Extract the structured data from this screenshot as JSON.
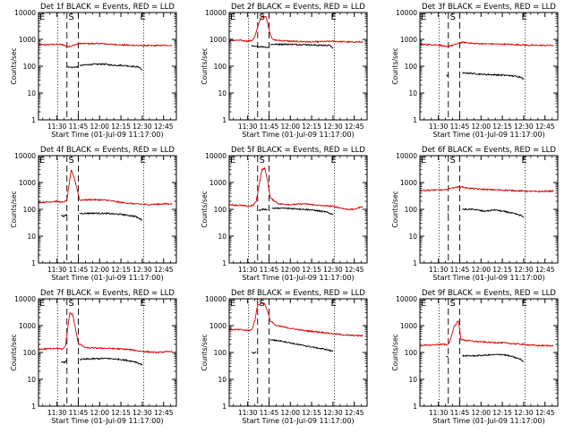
{
  "chart_data": {
    "type": "line",
    "y_scale": "log",
    "ylim": [
      1,
      10000
    ],
    "y_ticks": [
      "1",
      "10",
      "100",
      "1000",
      "10000"
    ],
    "x_ticks": [
      "11:30",
      "11:45",
      "12:00",
      "12:15",
      "12:30",
      "12:45"
    ],
    "x_tick_values": [
      30,
      45,
      60,
      75,
      90,
      105
    ],
    "x_unit": "minutes after 11:00",
    "xlim": [
      17,
      114
    ],
    "xlabel": "Start Time (01-Jul-09 11:17:00)",
    "ylabel": "Counts/sec",
    "series_names": [
      "Events",
      "LLD"
    ],
    "series_colors": {
      "Events": "#000000",
      "LLD": "#dd0000"
    },
    "panels": [
      {
        "title": "Det 1f BLACK = Events, RED = LLD",
        "markers": {
          "E1": "E",
          "S": "S",
          "E2": "E"
        },
        "vlines": {
          "dotted": [
            30.5,
            91
          ],
          "dashed": [
            37,
            45
          ]
        },
        "events": [
          [
            37.5,
            100
          ],
          [
            38,
            95
          ],
          [
            40,
            90
          ],
          [
            45,
            95
          ]
        ],
        "events2": [
          [
            46,
            105
          ],
          [
            52,
            115
          ],
          [
            58,
            118
          ],
          [
            63,
            120
          ],
          [
            68,
            110
          ],
          [
            74,
            108
          ],
          [
            78,
            105
          ],
          [
            82,
            100
          ],
          [
            86,
            95
          ],
          [
            88,
            92
          ],
          [
            90,
            70
          ]
        ],
        "lld": [
          [
            17,
            620
          ],
          [
            25,
            640
          ],
          [
            30,
            650
          ],
          [
            34,
            640
          ],
          [
            35,
            600
          ],
          [
            37,
            550
          ],
          [
            40,
            560
          ],
          [
            43,
            640
          ],
          [
            46,
            700
          ],
          [
            52,
            690
          ],
          [
            60,
            700
          ],
          [
            75,
            620
          ],
          [
            85,
            600
          ],
          [
            95,
            580
          ],
          [
            105,
            600
          ],
          [
            111,
            600
          ]
        ]
      },
      {
        "title": "Det 2f BLACK = Events, RED = LLD",
        "markers": {
          "E1": "E",
          "S": "S",
          "E2": "E"
        },
        "vlines": {
          "dotted": [
            30.5,
            91
          ],
          "dashed": [
            37,
            45
          ]
        },
        "events": [
          [
            33,
            600
          ],
          [
            33,
            550
          ],
          [
            40,
            530
          ],
          [
            45,
            500
          ]
        ],
        "events2": [
          [
            46,
            650
          ],
          [
            55,
            660
          ],
          [
            62,
            650
          ],
          [
            70,
            640
          ],
          [
            80,
            600
          ],
          [
            88,
            600
          ],
          [
            90,
            450
          ]
        ],
        "lld": [
          [
            17,
            900
          ],
          [
            25,
            920
          ],
          [
            30,
            860
          ],
          [
            33,
            900
          ],
          [
            35,
            1200
          ],
          [
            37,
            3000
          ],
          [
            39,
            6000
          ],
          [
            41,
            7500
          ],
          [
            43,
            7000
          ],
          [
            44,
            4000
          ],
          [
            46,
            1500
          ],
          [
            48,
            950
          ],
          [
            60,
            850
          ],
          [
            75,
            800
          ],
          [
            90,
            850
          ],
          [
            101,
            800
          ],
          [
            111,
            800
          ]
        ]
      },
      {
        "title": "Det 3f BLACK = Events, RED = LLD",
        "markers": {
          "E1": "E",
          "S": "S",
          "E2": "E"
        },
        "vlines": {
          "dotted": [
            30.5,
            91
          ],
          "dashed": [
            37,
            45
          ]
        },
        "events": [
          [
            35.5,
            45
          ],
          [
            37,
            45
          ]
        ],
        "events2": [
          [
            47,
            55
          ],
          [
            52,
            55
          ],
          [
            60,
            50
          ],
          [
            70,
            48
          ],
          [
            80,
            45
          ],
          [
            88,
            40
          ],
          [
            90,
            32
          ]
        ],
        "lld": [
          [
            17,
            650
          ],
          [
            25,
            640
          ],
          [
            30,
            620
          ],
          [
            34,
            560
          ],
          [
            36,
            520
          ],
          [
            37,
            560
          ],
          [
            40,
            600
          ],
          [
            44,
            700
          ],
          [
            47,
            780
          ],
          [
            55,
            700
          ],
          [
            65,
            680
          ],
          [
            80,
            650
          ],
          [
            95,
            600
          ],
          [
            111,
            600
          ]
        ]
      },
      {
        "title": "Det 4f BLACK = Events, RED = LLD",
        "markers": {
          "E1": "E",
          "S": "S",
          "E2": "E"
        },
        "vlines": {
          "dotted": [
            30.5,
            91
          ],
          "dashed": [
            37,
            45
          ]
        },
        "events": [
          [
            33,
            60
          ],
          [
            35,
            55
          ],
          [
            37,
            65
          ]
        ],
        "events2": [
          [
            46,
            70
          ],
          [
            55,
            72
          ],
          [
            65,
            70
          ],
          [
            75,
            65
          ],
          [
            85,
            55
          ],
          [
            90,
            40
          ]
        ],
        "lld": [
          [
            17,
            180
          ],
          [
            25,
            190
          ],
          [
            30,
            200
          ],
          [
            34,
            180
          ],
          [
            37,
            220
          ],
          [
            40,
            3000
          ],
          [
            42,
            1600
          ],
          [
            44,
            600
          ],
          [
            46,
            220
          ],
          [
            55,
            230
          ],
          [
            65,
            220
          ],
          [
            75,
            180
          ],
          [
            85,
            160
          ],
          [
            95,
            150
          ],
          [
            105,
            160
          ],
          [
            111,
            160
          ]
        ]
      },
      {
        "title": "Det 5f BLACK = Events, RED = LLD",
        "markers": {
          "E1": "E",
          "S": "S",
          "E2": "E"
        },
        "vlines": {
          "dotted": [
            30.5,
            91
          ],
          "dashed": [
            37,
            45
          ]
        },
        "events": [
          [
            38,
            95
          ],
          [
            38,
            90
          ],
          [
            40,
            100
          ],
          [
            44,
            100
          ]
        ],
        "events2": [
          [
            47,
            110
          ],
          [
            55,
            110
          ],
          [
            65,
            105
          ],
          [
            75,
            95
          ],
          [
            85,
            80
          ],
          [
            90,
            65
          ]
        ],
        "lld": [
          [
            17,
            150
          ],
          [
            25,
            140
          ],
          [
            30,
            130
          ],
          [
            34,
            140
          ],
          [
            36,
            200
          ],
          [
            38,
            800
          ],
          [
            40,
            3000
          ],
          [
            42,
            3400
          ],
          [
            44,
            1200
          ],
          [
            46,
            260
          ],
          [
            52,
            160
          ],
          [
            60,
            150
          ],
          [
            70,
            160
          ],
          [
            80,
            140
          ],
          [
            90,
            130
          ],
          [
            100,
            100
          ],
          [
            105,
            100
          ],
          [
            111,
            130
          ]
        ]
      },
      {
        "title": "Det 6f BLACK = Events, RED = LLD",
        "markers": {
          "E1": "E",
          "S": "S",
          "E2": "E"
        },
        "vlines": {
          "dotted": [
            30.5,
            91
          ],
          "dashed": [
            37,
            45
          ]
        },
        "events": [
          [
            36.5,
            70
          ],
          [
            37,
            65
          ]
        ],
        "events2": [
          [
            47,
            100
          ],
          [
            55,
            100
          ],
          [
            62,
            85
          ],
          [
            70,
            95
          ],
          [
            78,
            80
          ],
          [
            88,
            60
          ],
          [
            90,
            50
          ]
        ],
        "lld": [
          [
            17,
            500
          ],
          [
            25,
            520
          ],
          [
            30,
            530
          ],
          [
            34,
            520
          ],
          [
            36,
            560
          ],
          [
            38,
            600
          ],
          [
            42,
            650
          ],
          [
            46,
            700
          ],
          [
            50,
            620
          ],
          [
            60,
            560
          ],
          [
            75,
            520
          ],
          [
            90,
            480
          ],
          [
            100,
            460
          ],
          [
            111,
            480
          ]
        ]
      },
      {
        "title": "Det 7f BLACK = Events, RED = LLD",
        "markers": {
          "E1": "E",
          "S": "S",
          "E2": "E"
        },
        "vlines": {
          "dotted": [
            30.5,
            91
          ],
          "dashed": [
            37,
            45
          ]
        },
        "events": [
          [
            33,
            45
          ],
          [
            35,
            42
          ],
          [
            37,
            50
          ]
        ],
        "events2": [
          [
            46,
            55
          ],
          [
            55,
            58
          ],
          [
            65,
            60
          ],
          [
            75,
            55
          ],
          [
            85,
            45
          ],
          [
            90,
            35
          ]
        ],
        "lld": [
          [
            17,
            130
          ],
          [
            25,
            140
          ],
          [
            30,
            145
          ],
          [
            34,
            130
          ],
          [
            36,
            180
          ],
          [
            39,
            3000
          ],
          [
            41,
            2600
          ],
          [
            43,
            800
          ],
          [
            45,
            220
          ],
          [
            50,
            150
          ],
          [
            60,
            145
          ],
          [
            70,
            140
          ],
          [
            80,
            130
          ],
          [
            90,
            110
          ],
          [
            100,
            100
          ],
          [
            111,
            110
          ]
        ]
      },
      {
        "title": "Det 8f BLACK = Events, RED = LLD",
        "markers": {
          "E1": "E",
          "S": "S",
          "E2": "E"
        },
        "vlines": {
          "dotted": [
            30.5,
            91
          ],
          "dashed": [
            37,
            45
          ]
        },
        "events": [
          [
            33,
            100
          ],
          [
            34,
            95
          ],
          [
            36,
            105
          ]
        ],
        "events2": [
          [
            46,
            300
          ],
          [
            55,
            260
          ],
          [
            65,
            200
          ],
          [
            75,
            160
          ],
          [
            85,
            130
          ],
          [
            90,
            110
          ]
        ],
        "lld": [
          [
            17,
            720
          ],
          [
            25,
            700
          ],
          [
            30,
            660
          ],
          [
            33,
            700
          ],
          [
            35,
            1500
          ],
          [
            37,
            6000
          ],
          [
            40,
            7000
          ],
          [
            42,
            6500
          ],
          [
            44,
            3500
          ],
          [
            46,
            1500
          ],
          [
            50,
            1000
          ],
          [
            60,
            800
          ],
          [
            70,
            650
          ],
          [
            80,
            580
          ],
          [
            90,
            500
          ],
          [
            100,
            440
          ],
          [
            111,
            420
          ]
        ]
      },
      {
        "title": "Det 9f BLACK = Events, RED = LLD",
        "markers": {
          "E1": "E",
          "S": "S",
          "E2": "E"
        },
        "vlines": {
          "dotted": [
            30.5,
            91
          ],
          "dashed": [
            37,
            45
          ]
        },
        "events": [
          [
            35.5,
            70
          ],
          [
            37,
            70
          ]
        ],
        "events2": [
          [
            47,
            75
          ],
          [
            55,
            75
          ],
          [
            65,
            80
          ],
          [
            75,
            85
          ],
          [
            82,
            70
          ],
          [
            88,
            55
          ],
          [
            90,
            45
          ]
        ],
        "lld": [
          [
            17,
            180
          ],
          [
            25,
            190
          ],
          [
            30,
            200
          ],
          [
            34,
            200
          ],
          [
            36,
            190
          ],
          [
            38,
            250
          ],
          [
            41,
            900
          ],
          [
            44,
            1500
          ],
          [
            46,
            300
          ],
          [
            55,
            260
          ],
          [
            65,
            240
          ],
          [
            75,
            230
          ],
          [
            90,
            200
          ],
          [
            100,
            180
          ],
          [
            111,
            180
          ]
        ]
      }
    ]
  }
}
